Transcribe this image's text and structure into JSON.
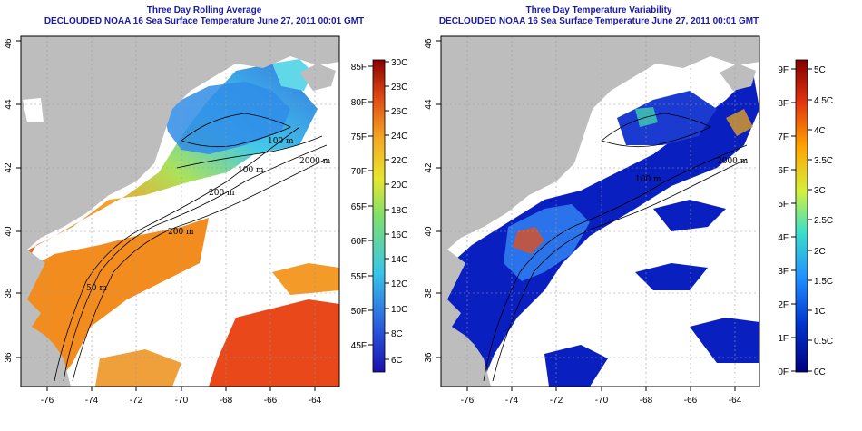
{
  "left_panel": {
    "title": "Three Day Rolling Average",
    "subtitle": "DECLOUDED NOAA 16 Sea Surface Temperature June 27, 2011 00:01 GMT",
    "x_ticks": [
      "-76",
      "-74",
      "-72",
      "-70",
      "-68",
      "-66",
      "-64"
    ],
    "y_ticks": [
      "36",
      "38",
      "40",
      "42",
      "44",
      "46"
    ],
    "colorbar_f": [
      "85F",
      "80F",
      "75F",
      "70F",
      "65F",
      "60F",
      "55F",
      "50F",
      "45F"
    ],
    "colorbar_c": [
      "30C",
      "28C",
      "26C",
      "24C",
      "22C",
      "20C",
      "18C",
      "16C",
      "14C",
      "12C",
      "10C",
      "8C",
      "6C"
    ],
    "contour_labels": [
      "100 m",
      "2000 m",
      "100 m",
      "200 m",
      "200 m",
      "50 m"
    ]
  },
  "right_panel": {
    "title": "Three Day Temperature Variability",
    "subtitle": "DECLOUDED NOAA 16 Sea Surface Temperature June 27, 2011 00:01 GMT",
    "x_ticks": [
      "-76",
      "-74",
      "-72",
      "-70",
      "-68",
      "-66",
      "-64"
    ],
    "y_ticks": [
      "36",
      "38",
      "40",
      "42",
      "44",
      "46"
    ],
    "colorbar_f": [
      "9F",
      "8F",
      "7F",
      "6F",
      "5F",
      "4F",
      "3F",
      "2F",
      "1F",
      "0F"
    ],
    "colorbar_c": [
      "5C",
      "4.5C",
      "4C",
      "3.5C",
      "3C",
      "2.5C",
      "2C",
      "1.5C",
      "1C",
      "0.5C",
      "0C"
    ],
    "contour_labels": [
      "2000 m",
      "100 m"
    ]
  },
  "colors": {
    "land": "#bdbdbd",
    "title": "#1a1aa6",
    "sst_scale": [
      "#1a0fb0",
      "#2a5fe0",
      "#38c6e8",
      "#7ee06b",
      "#e8e62c",
      "#f5a623",
      "#e04a12",
      "#8b0000"
    ],
    "var_scale": [
      "#000080",
      "#0033cc",
      "#1f8fff",
      "#3de0c8",
      "#d6f03a",
      "#ffa500",
      "#e03010",
      "#800000"
    ]
  }
}
